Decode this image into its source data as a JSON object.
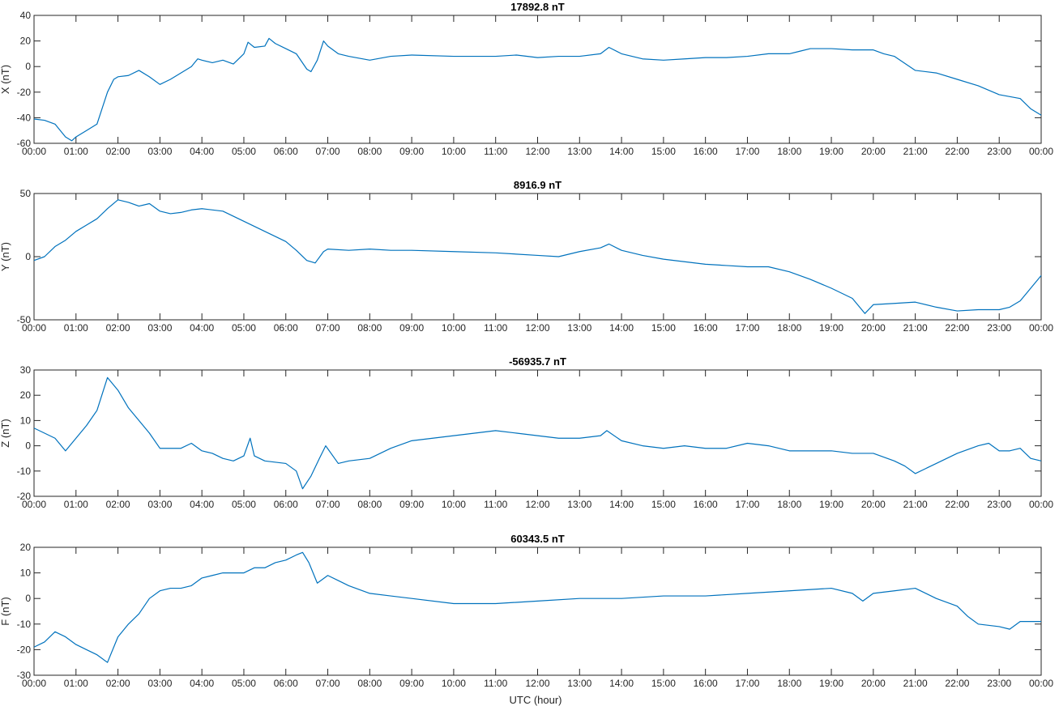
{
  "colors": {
    "line": "#0072BD",
    "axis": "#262626",
    "background": "#ffffff"
  },
  "xlabel": "UTC (hour)",
  "chart_data": [
    {
      "type": "line",
      "title": "17892.8 nT",
      "ylabel": "X (nT)",
      "ylim": [
        -60,
        40
      ],
      "yticks": [
        -60,
        -40,
        -20,
        0,
        20,
        40
      ],
      "xlim": [
        0,
        24
      ],
      "xtick_labels": [
        "00:00",
        "01:00",
        "02:00",
        "03:00",
        "04:00",
        "05:00",
        "06:00",
        "07:00",
        "08:00",
        "09:00",
        "10:00",
        "11:00",
        "12:00",
        "13:00",
        "14:00",
        "15:00",
        "16:00",
        "17:00",
        "18:00",
        "19:00",
        "20:00",
        "21:00",
        "22:00",
        "23:00",
        "00:00"
      ],
      "grid": false,
      "series": [
        {
          "x": [
            0,
            0.25,
            0.5,
            0.75,
            0.9,
            1.0,
            1.25,
            1.5,
            1.75,
            1.9,
            2.0,
            2.25,
            2.5,
            2.75,
            3.0,
            3.25,
            3.5,
            3.75,
            3.9,
            4.0,
            4.25,
            4.5,
            4.75,
            5.0,
            5.1,
            5.25,
            5.5,
            5.6,
            5.75,
            6.0,
            6.25,
            6.5,
            6.6,
            6.75,
            6.9,
            7.0,
            7.25,
            7.5,
            8.0,
            8.5,
            9.0,
            10.0,
            11.0,
            11.5,
            12.0,
            12.5,
            13.0,
            13.5,
            13.7,
            14.0,
            14.5,
            15.0,
            15.5,
            16.0,
            16.5,
            17.0,
            17.5,
            18.0,
            18.25,
            18.5,
            19.0,
            19.5,
            20.0,
            20.25,
            20.5,
            21.0,
            21.5,
            22.0,
            22.5,
            23.0,
            23.5,
            23.75,
            24.0
          ],
          "y": [
            -41,
            -42,
            -45,
            -55,
            -58,
            -55,
            -50,
            -45,
            -20,
            -10,
            -8,
            -7,
            -3,
            -8,
            -14,
            -10,
            -5,
            0,
            6,
            5,
            3,
            5,
            2,
            10,
            19,
            15,
            16,
            22,
            18,
            14,
            10,
            -2,
            -4,
            5,
            20,
            16,
            10,
            8,
            5,
            8,
            9,
            8,
            8,
            9,
            7,
            8,
            8,
            10,
            15,
            10,
            6,
            5,
            6,
            7,
            7,
            8,
            10,
            10,
            12,
            14,
            14,
            13,
            13,
            10,
            8,
            -3,
            -5,
            -10,
            -15,
            -22,
            -25,
            -33,
            -38
          ]
        }
      ]
    },
    {
      "type": "line",
      "title": "8916.9 nT",
      "ylabel": "Y (nT)",
      "ylim": [
        -50,
        50
      ],
      "yticks": [
        -50,
        0,
        50
      ],
      "xlim": [
        0,
        24
      ],
      "xtick_labels": [
        "00:00",
        "01:00",
        "02:00",
        "03:00",
        "04:00",
        "05:00",
        "06:00",
        "07:00",
        "08:00",
        "09:00",
        "10:00",
        "11:00",
        "12:00",
        "13:00",
        "14:00",
        "15:00",
        "16:00",
        "17:00",
        "18:00",
        "19:00",
        "20:00",
        "21:00",
        "22:00",
        "23:00",
        "00:00"
      ],
      "grid": false,
      "series": [
        {
          "x": [
            0,
            0.25,
            0.5,
            0.75,
            1.0,
            1.25,
            1.5,
            1.75,
            2.0,
            2.25,
            2.5,
            2.75,
            3.0,
            3.25,
            3.5,
            3.75,
            4.0,
            4.5,
            4.75,
            5.0,
            5.25,
            5.5,
            5.75,
            6.0,
            6.25,
            6.5,
            6.7,
            6.9,
            7.0,
            7.5,
            8.0,
            8.5,
            9.0,
            10.0,
            11.0,
            12.0,
            12.5,
            13.0,
            13.5,
            13.7,
            14.0,
            14.5,
            15.0,
            15.5,
            16.0,
            16.5,
            17.0,
            17.5,
            18.0,
            18.5,
            19.0,
            19.5,
            19.8,
            20.0,
            20.5,
            21.0,
            21.5,
            22.0,
            22.5,
            23.0,
            23.25,
            23.5,
            23.75,
            24.0
          ],
          "y": [
            -3,
            0,
            8,
            13,
            20,
            25,
            30,
            38,
            45,
            43,
            40,
            42,
            36,
            34,
            35,
            37,
            38,
            36,
            32,
            28,
            24,
            20,
            16,
            12,
            5,
            -3,
            -5,
            4,
            6,
            5,
            6,
            5,
            5,
            4,
            3,
            1,
            0,
            4,
            7,
            10,
            5,
            1,
            -2,
            -4,
            -6,
            -7,
            -8,
            -8,
            -12,
            -18,
            -25,
            -33,
            -45,
            -38,
            -37,
            -36,
            -40,
            -43,
            -42,
            -42,
            -40,
            -35,
            -25,
            -15
          ]
        }
      ]
    },
    {
      "type": "line",
      "title": "-56935.7 nT",
      "ylabel": "Z (nT)",
      "ylim": [
        -20,
        30
      ],
      "yticks": [
        -20,
        -10,
        0,
        10,
        20,
        30
      ],
      "xlim": [
        0,
        24
      ],
      "xtick_labels": [
        "00:00",
        "01:00",
        "02:00",
        "03:00",
        "04:00",
        "05:00",
        "06:00",
        "07:00",
        "08:00",
        "09:00",
        "10:00",
        "11:00",
        "12:00",
        "13:00",
        "14:00",
        "15:00",
        "16:00",
        "17:00",
        "18:00",
        "19:00",
        "20:00",
        "21:00",
        "22:00",
        "23:00",
        "00:00"
      ],
      "grid": false,
      "series": [
        {
          "x": [
            0,
            0.25,
            0.5,
            0.75,
            1.0,
            1.25,
            1.5,
            1.75,
            2.0,
            2.25,
            2.5,
            2.75,
            3.0,
            3.5,
            3.75,
            4.0,
            4.25,
            4.5,
            4.75,
            5.0,
            5.15,
            5.25,
            5.5,
            6.0,
            6.25,
            6.4,
            6.6,
            6.8,
            6.95,
            7.25,
            7.5,
            8.0,
            8.5,
            9.0,
            9.5,
            10.0,
            10.5,
            11.0,
            11.5,
            12.0,
            12.5,
            13.0,
            13.5,
            13.65,
            14.0,
            14.5,
            15.0,
            15.5,
            16.0,
            16.5,
            17.0,
            17.5,
            18.0,
            18.5,
            19.0,
            19.5,
            20.0,
            20.5,
            20.75,
            21.0,
            21.5,
            22.0,
            22.5,
            22.75,
            23.0,
            23.25,
            23.5,
            23.75,
            24.0
          ],
          "y": [
            7,
            5,
            3,
            -2,
            3,
            8,
            14,
            27,
            22,
            15,
            10,
            5,
            -1,
            -1,
            1,
            -2,
            -3,
            -5,
            -6,
            -4,
            3,
            -4,
            -6,
            -7,
            -10,
            -17,
            -12,
            -5,
            0,
            -7,
            -6,
            -5,
            -1,
            2,
            3,
            4,
            5,
            6,
            5,
            4,
            3,
            3,
            4,
            6,
            2,
            0,
            -1,
            0,
            -1,
            -1,
            1,
            0,
            -2,
            -2,
            -2,
            -3,
            -3,
            -6,
            -8,
            -11,
            -7,
            -3,
            0,
            1,
            -2,
            -2,
            -1,
            -5,
            -6
          ]
        }
      ]
    },
    {
      "type": "line",
      "title": "60343.5 nT",
      "ylabel": "F (nT)",
      "ylim": [
        -30,
        20
      ],
      "yticks": [
        -30,
        -20,
        -10,
        0,
        10,
        20
      ],
      "xlim": [
        0,
        24
      ],
      "xtick_labels": [
        "00:00",
        "01:00",
        "02:00",
        "03:00",
        "04:00",
        "05:00",
        "06:00",
        "07:00",
        "08:00",
        "09:00",
        "10:00",
        "11:00",
        "12:00",
        "13:00",
        "14:00",
        "15:00",
        "16:00",
        "17:00",
        "18:00",
        "19:00",
        "20:00",
        "21:00",
        "22:00",
        "23:00",
        "00:00"
      ],
      "grid": false,
      "series": [
        {
          "x": [
            0,
            0.25,
            0.5,
            0.75,
            1.0,
            1.25,
            1.5,
            1.75,
            2.0,
            2.25,
            2.5,
            2.75,
            3.0,
            3.25,
            3.5,
            3.75,
            4.0,
            4.25,
            4.5,
            5.0,
            5.25,
            5.5,
            5.75,
            6.0,
            6.25,
            6.4,
            6.55,
            6.75,
            7.0,
            7.25,
            7.5,
            8.0,
            8.5,
            9.0,
            10.0,
            11.0,
            12.0,
            13.0,
            14.0,
            15.0,
            16.0,
            17.0,
            18.0,
            19.0,
            19.5,
            19.75,
            20.0,
            20.5,
            21.0,
            21.5,
            22.0,
            22.25,
            22.5,
            23.0,
            23.25,
            23.5,
            23.75,
            24.0
          ],
          "y": [
            -19,
            -17,
            -13,
            -15,
            -18,
            -20,
            -22,
            -25,
            -15,
            -10,
            -6,
            0,
            3,
            4,
            4,
            5,
            8,
            9,
            10,
            10,
            12,
            12,
            14,
            15,
            17,
            18,
            14,
            6,
            9,
            7,
            5,
            2,
            1,
            0,
            -2,
            -2,
            -1,
            0,
            0,
            1,
            1,
            2,
            3,
            4,
            2,
            -1,
            2,
            3,
            4,
            0,
            -3,
            -7,
            -10,
            -11,
            -12,
            -9,
            -9,
            -9
          ]
        }
      ]
    }
  ]
}
